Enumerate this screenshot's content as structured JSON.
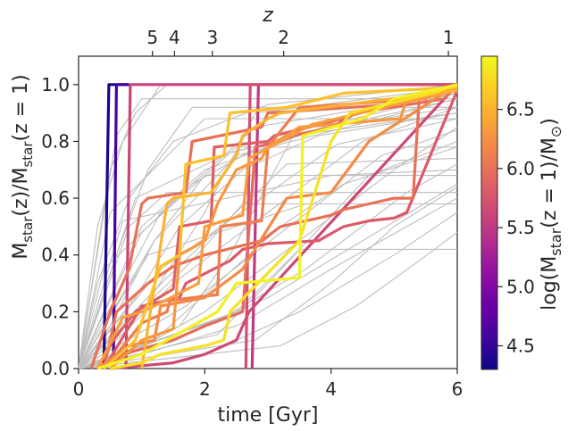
{
  "chart_data": {
    "type": "line",
    "title": "",
    "xlabel": "time [Gyr]",
    "ylabel_main": "M",
    "ylabel_sub": "star",
    "ylabel_expr": "(z)/M",
    "ylabel_sub2": "star",
    "ylabel_tail": "(z = 1)",
    "top_axis_label": "z",
    "colorbar_label_pre": "log(M",
    "colorbar_label_sub": "star",
    "colorbar_label_mid": "(z = 1)/M",
    "colorbar_label_sub2": "⊙",
    "colorbar_label_post": ")",
    "xlim": [
      0,
      6
    ],
    "ylim": [
      0,
      1.1
    ],
    "xticks": [
      "0",
      "2",
      "4",
      "6"
    ],
    "yticks": [
      "0.0",
      "0.2",
      "0.4",
      "0.6",
      "0.8",
      "1.0"
    ],
    "top_ticks": [
      {
        "label": "5",
        "t": 1.17
      },
      {
        "label": "4",
        "t": 1.52
      },
      {
        "label": "3",
        "t": 2.12
      },
      {
        "label": "2",
        "t": 3.25
      },
      {
        "label": "1",
        "t": 5.86
      }
    ],
    "colorbar_range": [
      4.3,
      6.95
    ],
    "colorbar_ticks": [
      "4.5",
      "5.0",
      "5.5",
      "6.0",
      "6.5"
    ],
    "colormap": [
      "#0d0887",
      "#41049d",
      "#6a00a8",
      "#8f0da4",
      "#b12a90",
      "#cc4778",
      "#e16462",
      "#f2844b",
      "#fca636",
      "#fcce25",
      "#f0f921"
    ],
    "grey_color": "#bdbdbd",
    "background_series": [
      {
        "x": [
          0,
          0.3,
          0.8,
          1.5,
          3,
          6
        ],
        "y": [
          0,
          0.3,
          0.6,
          0.8,
          0.93,
          1.0
        ]
      },
      {
        "x": [
          0,
          0.4,
          1.0,
          2.0,
          4.0,
          6
        ],
        "y": [
          0,
          0.2,
          0.5,
          0.7,
          0.86,
          0.97
        ]
      },
      {
        "x": [
          0,
          0.5,
          1.2,
          2.5,
          6
        ],
        "y": [
          0,
          0.15,
          0.45,
          0.75,
          0.95
        ]
      },
      {
        "x": [
          0,
          0.6,
          1.5,
          3,
          4.5,
          6
        ],
        "y": [
          0,
          0.1,
          0.3,
          0.55,
          0.8,
          0.92
        ]
      },
      {
        "x": [
          0,
          0.8,
          2,
          3.5,
          5,
          6
        ],
        "y": [
          0,
          0.05,
          0.2,
          0.45,
          0.7,
          0.85
        ]
      },
      {
        "x": [
          0,
          1.0,
          2.5,
          4,
          6
        ],
        "y": [
          0,
          0.05,
          0.15,
          0.35,
          0.6
        ]
      },
      {
        "x": [
          0,
          0.5,
          0.9,
          1.4,
          6
        ],
        "y": [
          0,
          0.7,
          0.9,
          1.0,
          1.0
        ]
      },
      {
        "x": [
          0,
          0.3,
          0.7,
          1.3,
          6
        ],
        "y": [
          0,
          0.5,
          0.8,
          1.0,
          1.0
        ]
      },
      {
        "x": [
          0,
          0.6,
          1.1,
          1.8,
          6
        ],
        "y": [
          0,
          0.4,
          0.7,
          0.92,
          0.92
        ]
      },
      {
        "x": [
          0,
          0.9,
          1.6,
          2.6,
          3.8,
          6
        ],
        "y": [
          0,
          0.25,
          0.5,
          0.7,
          0.82,
          0.9
        ]
      },
      {
        "x": [
          0,
          1.2,
          2.2,
          3.2,
          4.2,
          6
        ],
        "y": [
          0,
          0.1,
          0.3,
          0.5,
          0.65,
          0.78
        ]
      },
      {
        "x": [
          0,
          1.5,
          3,
          4.5,
          6
        ],
        "y": [
          0,
          0.1,
          0.25,
          0.45,
          0.65
        ]
      },
      {
        "x": [
          0,
          2,
          3.5,
          5,
          6
        ],
        "y": [
          0,
          0.05,
          0.2,
          0.4,
          0.55
        ]
      },
      {
        "x": [
          0,
          0.4,
          1.8,
          3.0,
          6
        ],
        "y": [
          0,
          0.35,
          0.65,
          0.8,
          0.95
        ]
      },
      {
        "x": [
          0,
          0.7,
          1.3,
          2.8,
          6
        ],
        "y": [
          0,
          0.3,
          0.55,
          0.85,
          0.97
        ]
      },
      {
        "x": [
          0,
          1.0,
          2.0,
          2.8,
          6
        ],
        "y": [
          0,
          0.2,
          0.55,
          0.9,
          0.99
        ]
      },
      {
        "x": [
          0,
          1.6,
          2.4,
          3.4,
          6
        ],
        "y": [
          0,
          0.15,
          0.4,
          0.82,
          0.9
        ]
      },
      {
        "x": [
          0,
          2.2,
          3.0,
          4.6,
          6
        ],
        "y": [
          0,
          0.12,
          0.3,
          0.68,
          0.8
        ]
      },
      {
        "x": [
          0,
          0.8,
          1.4,
          6
        ],
        "y": [
          0,
          0.5,
          0.62,
          0.62
        ]
      },
      {
        "x": [
          0,
          1.2,
          2.0,
          6
        ],
        "y": [
          0,
          0.45,
          0.68,
          0.68
        ]
      },
      {
        "x": [
          0,
          1.8,
          2.6,
          6
        ],
        "y": [
          0,
          0.38,
          0.58,
          0.58
        ]
      },
      {
        "x": [
          0,
          2.5,
          3.5,
          6
        ],
        "y": [
          0,
          0.2,
          0.42,
          0.42
        ]
      },
      {
        "x": [
          0,
          0.5,
          2.0,
          6
        ],
        "y": [
          0,
          0.55,
          0.88,
          0.88
        ]
      },
      {
        "x": [
          0,
          1.0,
          2.5,
          6
        ],
        "y": [
          0,
          0.48,
          0.78,
          0.78
        ]
      },
      {
        "x": [
          0,
          1.4,
          3.3,
          6
        ],
        "y": [
          0,
          0.32,
          0.72,
          0.74
        ]
      },
      {
        "x": [
          0,
          2.8,
          4.0,
          5.0,
          6
        ],
        "y": [
          0,
          0.1,
          0.3,
          0.5,
          0.64
        ]
      },
      {
        "x": [
          0,
          3.2,
          4.4,
          5.4,
          6
        ],
        "y": [
          0,
          0.08,
          0.22,
          0.38,
          0.48
        ]
      },
      {
        "x": [
          0,
          0.9,
          2.4,
          4.2,
          6
        ],
        "y": [
          0,
          0.6,
          0.76,
          0.86,
          0.92
        ]
      },
      {
        "x": [
          0,
          1.3,
          2.9,
          4.1,
          6
        ],
        "y": [
          0,
          0.35,
          0.6,
          0.79,
          0.88
        ]
      },
      {
        "x": [
          0,
          1.7,
          3.1,
          4.8,
          6
        ],
        "y": [
          0,
          0.22,
          0.46,
          0.75,
          0.84
        ]
      },
      {
        "x": [
          0,
          2.3,
          3.6,
          5.2,
          6
        ],
        "y": [
          0,
          0.18,
          0.35,
          0.62,
          0.72
        ]
      },
      {
        "x": [
          0,
          0.6,
          1.0,
          6
        ],
        "y": [
          0,
          0.82,
          0.95,
          0.95
        ]
      },
      {
        "x": [
          0,
          1.1,
          3.6,
          6
        ],
        "y": [
          0,
          0.4,
          0.58,
          0.58
        ]
      },
      {
        "x": [
          0,
          0.7,
          4.0,
          6
        ],
        "y": [
          0,
          0.52,
          0.68,
          0.7
        ]
      }
    ],
    "colored_series": [
      {
        "c": 4.35,
        "x": [
          0.4,
          0.48,
          0.8
        ],
        "y": [
          0.0,
          1.0,
          1.0
        ]
      },
      {
        "c": 4.6,
        "x": [
          0.55,
          0.6,
          0.8
        ],
        "y": [
          0.0,
          1.0,
          1.0
        ]
      },
      {
        "c": 5.6,
        "x": [
          0.75,
          0.82,
          6
        ],
        "y": [
          0.0,
          1.0,
          1.0
        ]
      },
      {
        "c": 5.7,
        "x": [
          2.65,
          2.72,
          6
        ],
        "y": [
          0.0,
          1.0,
          1.0
        ]
      },
      {
        "c": 5.5,
        "x": [
          2.75,
          2.85,
          6
        ],
        "y": [
          0.0,
          1.0,
          1.0
        ]
      },
      {
        "c": 5.85,
        "x": [
          0.3,
          0.55,
          0.9,
          1.5,
          1.6,
          2.1,
          2.15,
          3.0,
          3.1,
          4.0,
          6
        ],
        "y": [
          0.0,
          0.1,
          0.2,
          0.28,
          0.5,
          0.52,
          0.78,
          0.8,
          0.82,
          0.87,
          1.0
        ]
      },
      {
        "c": 6.1,
        "x": [
          0.35,
          0.6,
          1.0,
          1.4,
          1.45,
          2.2,
          2.25,
          2.9,
          3.0,
          3.5,
          5.5,
          6
        ],
        "y": [
          0.0,
          0.05,
          0.16,
          0.2,
          0.24,
          0.26,
          0.5,
          0.52,
          0.78,
          0.92,
          0.95,
          1.0
        ]
      },
      {
        "c": 6.0,
        "x": [
          0.2,
          0.5,
          0.8,
          1.0,
          1.1,
          1.7,
          1.8,
          2.9,
          3.0,
          5.0,
          5.3,
          6
        ],
        "y": [
          0.0,
          0.2,
          0.35,
          0.58,
          0.6,
          0.62,
          0.8,
          0.85,
          0.9,
          0.93,
          0.96,
          1.0
        ]
      },
      {
        "c": 6.35,
        "x": [
          0.3,
          0.7,
          1.0,
          1.2,
          1.9,
          2.0,
          2.6,
          2.7,
          3.7,
          6
        ],
        "y": [
          0.0,
          0.18,
          0.2,
          0.22,
          0.3,
          0.5,
          0.54,
          0.74,
          0.86,
          0.98
        ]
      },
      {
        "c": 6.6,
        "x": [
          0.4,
          0.9,
          1.3,
          1.6,
          1.7,
          2.3,
          2.4,
          3.3,
          4.2,
          6
        ],
        "y": [
          0.0,
          0.1,
          0.36,
          0.4,
          0.72,
          0.75,
          0.9,
          0.92,
          0.97,
          0.99
        ]
      },
      {
        "c": 6.9,
        "x": [
          0.3,
          1.0,
          1.4,
          2.2,
          2.5,
          3.5,
          3.55,
          4.5,
          5.0,
          6
        ],
        "y": [
          0.0,
          0.05,
          0.1,
          0.2,
          0.3,
          0.32,
          0.82,
          0.88,
          0.95,
          1.0
        ]
      },
      {
        "c": 6.8,
        "x": [
          0.5,
          1.0,
          1.3,
          2.0,
          2.3,
          2.4,
          3.5,
          4.0,
          4.3,
          5.6,
          6
        ],
        "y": [
          0.0,
          0.02,
          0.05,
          0.08,
          0.1,
          0.2,
          0.45,
          0.8,
          0.9,
          0.97,
          1.0
        ]
      },
      {
        "c": 6.3,
        "x": [
          0.5,
          1.0,
          1.5,
          1.6,
          2.0,
          2.2,
          2.5,
          2.9,
          3.0,
          3.5,
          5.1,
          5.2,
          6
        ],
        "y": [
          0.0,
          0.1,
          0.14,
          0.4,
          0.45,
          0.58,
          0.7,
          0.74,
          0.78,
          0.85,
          0.88,
          0.95,
          1.0
        ]
      },
      {
        "c": 6.0,
        "x": [
          0.4,
          0.6,
          1.1,
          1.5,
          2.0,
          2.9,
          3.2,
          4.0,
          4.2,
          4.6,
          5.0,
          5.3,
          5.4,
          6
        ],
        "y": [
          0.0,
          0.2,
          0.3,
          0.36,
          0.4,
          0.45,
          0.5,
          0.54,
          0.56,
          0.58,
          0.6,
          0.6,
          0.96,
          1.0
        ]
      },
      {
        "c": 5.8,
        "x": [
          0.4,
          1.0,
          1.6,
          1.7,
          2.4,
          2.6,
          3.0,
          3.8,
          4.2,
          4.6,
          5.0,
          5.2,
          6
        ],
        "y": [
          0.0,
          0.22,
          0.25,
          0.3,
          0.38,
          0.42,
          0.44,
          0.45,
          0.5,
          0.52,
          0.53,
          0.55,
          0.98
        ]
      },
      {
        "c": 5.95,
        "x": [
          0.4,
          0.7,
          1.5,
          2.0,
          2.6,
          2.8,
          3.2,
          3.4,
          4.0,
          4.4,
          5.8,
          6
        ],
        "y": [
          0.0,
          0.05,
          0.1,
          0.15,
          0.2,
          0.78,
          0.8,
          0.82,
          0.85,
          0.9,
          0.95,
          1.0
        ]
      },
      {
        "c": 6.2,
        "x": [
          0.3,
          0.8,
          1.2,
          1.3,
          2.0,
          2.6,
          3.3,
          4.0,
          4.6,
          6
        ],
        "y": [
          0.0,
          0.08,
          0.1,
          0.22,
          0.25,
          0.35,
          0.6,
          0.62,
          0.8,
          1.0
        ]
      },
      {
        "c": 5.65,
        "x": [
          0.5,
          1.0,
          1.5,
          2.0,
          2.5,
          2.7,
          6
        ],
        "y": [
          0.0,
          0.01,
          0.02,
          0.05,
          0.1,
          0.2,
          1.0
        ]
      },
      {
        "c": 6.5,
        "x": [
          1.0,
          1.4,
          1.5,
          2.1,
          2.5,
          2.6,
          3.0,
          3.2,
          6
        ],
        "y": [
          0.0,
          0.58,
          0.6,
          0.62,
          0.75,
          0.82,
          0.88,
          0.9,
          0.98
        ]
      }
    ]
  }
}
